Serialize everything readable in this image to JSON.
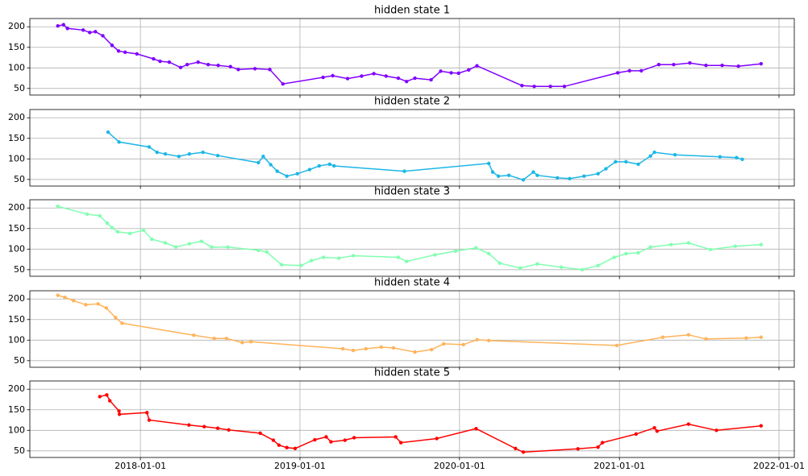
{
  "chart_data": [
    {
      "type": "line",
      "title": "hidden state 1",
      "color": "#8000ff",
      "xlim": [
        "2017-04-23",
        "2022-02-05"
      ],
      "xticks": [
        "2018-01-01",
        "2019-01-01",
        "2020-01-01",
        "2021-01-01",
        "2022-01-01"
      ],
      "ylim": [
        34,
        220
      ],
      "yticks": [
        50,
        100,
        150,
        200
      ],
      "grid": true,
      "x": [
        "2017-06-26",
        "2017-07-09",
        "2017-07-18",
        "2017-08-23",
        "2017-09-07",
        "2017-09-20",
        "2017-10-07",
        "2017-10-28",
        "2017-11-12",
        "2017-11-27",
        "2017-12-24",
        "2018-01-31",
        "2018-02-15",
        "2018-03-08",
        "2018-04-03",
        "2018-04-18",
        "2018-05-13",
        "2018-06-05",
        "2018-06-28",
        "2018-07-26",
        "2018-08-13",
        "2018-09-20",
        "2018-10-24",
        "2018-11-23",
        "2019-02-23",
        "2019-03-17",
        "2019-04-20",
        "2019-05-22",
        "2019-06-19",
        "2019-07-17",
        "2019-08-14",
        "2019-09-02",
        "2019-09-21",
        "2019-10-28",
        "2019-11-19",
        "2019-12-13",
        "2019-12-30",
        "2020-01-22",
        "2020-02-10",
        "2020-05-23",
        "2020-06-20",
        "2020-07-27",
        "2020-08-28",
        "2020-12-28",
        "2021-01-24",
        "2021-02-20",
        "2021-04-01",
        "2021-05-05",
        "2021-06-11",
        "2021-07-18",
        "2021-08-24",
        "2021-09-30",
        "2021-11-21"
      ],
      "values": [
        202,
        205,
        196,
        192,
        186,
        188,
        178,
        155,
        141,
        138,
        134,
        122,
        116,
        114,
        101,
        108,
        114,
        108,
        106,
        103,
        96,
        98,
        96,
        61,
        77,
        81,
        74,
        80,
        86,
        80,
        75,
        67,
        75,
        71,
        92,
        88,
        87,
        95,
        105,
        57,
        55,
        55,
        55,
        88,
        93,
        93,
        108,
        108,
        112,
        106,
        106,
        104,
        110
      ]
    },
    {
      "type": "line",
      "title": "hidden state 2",
      "color": "#1cb6e6",
      "xlim": [
        "2017-04-23",
        "2022-02-05"
      ],
      "xticks": [
        "2018-01-01",
        "2019-01-01",
        "2020-01-01",
        "2021-01-01",
        "2022-01-01"
      ],
      "ylim": [
        34,
        220
      ],
      "yticks": [
        50,
        100,
        150,
        200
      ],
      "grid": true,
      "x": [
        "2017-10-19",
        "2017-11-13",
        "2018-01-21",
        "2018-02-08",
        "2018-02-27",
        "2018-03-30",
        "2018-04-23",
        "2018-05-24",
        "2018-06-27",
        "2018-09-28",
        "2018-10-09",
        "2018-10-26",
        "2018-11-10",
        "2018-12-02",
        "2018-12-26",
        "2019-01-23",
        "2019-02-14",
        "2019-03-10",
        "2019-03-20",
        "2019-08-28",
        "2020-03-08",
        "2020-03-17",
        "2020-03-30",
        "2020-04-23",
        "2020-05-26",
        "2020-06-18",
        "2020-06-27",
        "2020-08-12",
        "2020-09-09",
        "2020-10-12",
        "2020-11-13",
        "2020-12-01",
        "2020-12-23",
        "2021-01-16",
        "2021-02-13",
        "2021-03-13",
        "2021-03-22",
        "2021-05-08",
        "2021-08-19",
        "2021-09-26",
        "2021-10-09"
      ],
      "values": [
        165,
        141,
        129,
        116,
        112,
        106,
        112,
        116,
        108,
        91,
        106,
        86,
        70,
        58,
        64,
        74,
        83,
        87,
        83,
        70,
        89,
        68,
        58,
        60,
        49,
        68,
        60,
        54,
        52,
        58,
        64,
        76,
        93,
        93,
        87,
        107,
        116,
        110,
        105,
        103,
        99
      ]
    },
    {
      "type": "line",
      "title": "hidden state 3",
      "color": "#80ffb0",
      "xlim": [
        "2017-04-23",
        "2022-02-05"
      ],
      "xticks": [
        "2018-01-01",
        "2019-01-01",
        "2020-01-01",
        "2021-01-01",
        "2022-01-01"
      ],
      "ylim": [
        34,
        220
      ],
      "yticks": [
        50,
        100,
        150,
        200
      ],
      "grid": true,
      "x": [
        "2017-06-26",
        "2017-09-01",
        "2017-09-30",
        "2017-10-17",
        "2017-10-28",
        "2017-11-10",
        "2017-12-08",
        "2018-01-08",
        "2018-01-27",
        "2018-02-27",
        "2018-03-23",
        "2018-04-23",
        "2018-05-21",
        "2018-06-13",
        "2018-07-20",
        "2018-09-28",
        "2018-10-17",
        "2018-11-20",
        "2019-01-03",
        "2019-01-27",
        "2019-02-24",
        "2019-03-31",
        "2019-05-03",
        "2019-08-14",
        "2019-09-02",
        "2019-11-06",
        "2019-12-23",
        "2020-02-08",
        "2020-03-08",
        "2020-04-02",
        "2020-05-19",
        "2020-06-27",
        "2020-08-21",
        "2020-10-08",
        "2020-11-13",
        "2020-12-20",
        "2021-01-16",
        "2021-02-13",
        "2021-03-13",
        "2021-04-29",
        "2021-06-08",
        "2021-07-28",
        "2021-09-23",
        "2021-11-21"
      ],
      "values": [
        204,
        185,
        181,
        163,
        152,
        142,
        138,
        146,
        124,
        115,
        105,
        113,
        119,
        105,
        105,
        97,
        93,
        62,
        60,
        72,
        80,
        78,
        84,
        80,
        70,
        86,
        95,
        103,
        89,
        66,
        54,
        64,
        56,
        50,
        60,
        80,
        89,
        91,
        105,
        111,
        115,
        99,
        107,
        111
      ]
    },
    {
      "type": "line",
      "title": "hidden state 4",
      "color": "#ffb35a",
      "xlim": [
        "2017-04-23",
        "2022-02-05"
      ],
      "xticks": [
        "2018-01-01",
        "2019-01-01",
        "2020-01-01",
        "2021-01-01",
        "2022-01-01"
      ],
      "ylim": [
        34,
        220
      ],
      "yticks": [
        50,
        100,
        150,
        200
      ],
      "grid": true,
      "x": [
        "2017-06-26",
        "2017-07-12",
        "2017-08-01",
        "2017-08-29",
        "2017-09-26",
        "2017-10-15",
        "2017-11-05",
        "2017-11-20",
        "2018-05-03",
        "2018-06-19",
        "2018-07-17",
        "2018-08-22",
        "2018-09-11",
        "2019-04-09",
        "2019-05-03",
        "2019-06-01",
        "2019-07-06",
        "2019-08-03",
        "2019-09-21",
        "2019-10-29",
        "2019-11-26",
        "2020-01-10",
        "2020-02-10",
        "2020-03-08",
        "2020-12-26",
        "2021-04-10",
        "2021-06-08",
        "2021-07-18",
        "2021-10-18",
        "2021-11-21"
      ],
      "values": [
        209,
        204,
        196,
        186,
        188,
        178,
        155,
        141,
        112,
        104,
        104,
        94,
        96,
        79,
        75,
        79,
        83,
        81,
        71,
        77,
        91,
        89,
        101,
        99,
        87,
        107,
        113,
        103,
        105,
        107
      ]
    },
    {
      "type": "line",
      "title": "hidden state 5",
      "color": "#ff0000",
      "xlim": [
        "2017-04-23",
        "2022-02-05"
      ],
      "xticks": [
        "2018-01-01",
        "2019-01-01",
        "2020-01-01",
        "2021-01-01",
        "2022-01-01"
      ],
      "ylim": [
        34,
        220
      ],
      "yticks": [
        50,
        100,
        150,
        200
      ],
      "grid": true,
      "x": [
        "2017-09-30",
        "2017-10-16",
        "2017-10-23",
        "2017-11-13",
        "2017-11-14",
        "2018-01-16",
        "2018-01-21",
        "2018-04-22",
        "2018-05-27",
        "2018-06-27",
        "2018-07-22",
        "2018-10-02",
        "2018-11-01",
        "2018-11-14",
        "2018-12-02",
        "2018-12-21",
        "2019-02-04",
        "2019-03-02",
        "2019-03-13",
        "2019-04-14",
        "2019-05-05",
        "2019-08-08",
        "2019-08-20",
        "2019-11-10",
        "2020-02-08",
        "2020-05-08",
        "2020-05-26",
        "2020-09-28",
        "2020-11-13",
        "2020-11-23",
        "2021-02-08",
        "2021-03-22",
        "2021-03-28",
        "2021-06-08",
        "2021-08-11",
        "2021-11-21"
      ],
      "values": [
        182,
        186,
        172,
        147,
        139,
        143,
        125,
        113,
        109,
        105,
        101,
        93,
        76,
        64,
        58,
        56,
        77,
        84,
        72,
        76,
        82,
        84,
        70,
        80,
        104,
        56,
        47,
        55,
        59,
        70,
        91,
        106,
        98,
        115,
        100,
        111
      ]
    }
  ]
}
